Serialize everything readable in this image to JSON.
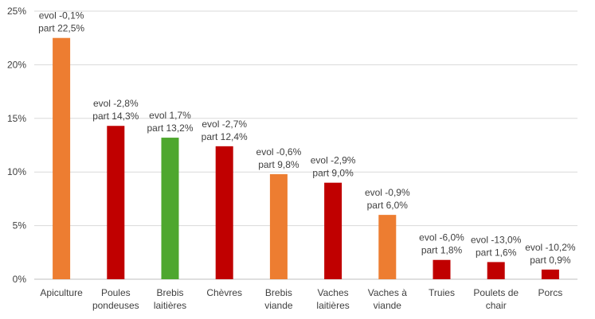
{
  "chart_data": {
    "type": "bar",
    "title": "",
    "xlabel": "",
    "ylabel": "",
    "ylim": [
      0,
      25
    ],
    "y_ticks": [
      "0%",
      "5%",
      "10%",
      "15%",
      "20%",
      "25%"
    ],
    "y_tick_values": [
      0,
      5,
      10,
      15,
      20,
      25
    ],
    "grid": true,
    "legend": "none",
    "colors": {
      "orange": "#ED7D31",
      "red": "#C00000",
      "green": "#4EA72E"
    },
    "categories": [
      [
        "Apiculture"
      ],
      [
        "Poules",
        "pondeuses"
      ],
      [
        "Brebis",
        "laitières"
      ],
      [
        "Chèvres"
      ],
      [
        "Brebis",
        "viande"
      ],
      [
        "Vaches",
        "laitières"
      ],
      [
        "Vaches à",
        "viande"
      ],
      [
        "Truies"
      ],
      [
        "Poulets de",
        "chair"
      ],
      [
        "Porcs"
      ]
    ],
    "values": [
      22.5,
      14.3,
      13.2,
      12.4,
      9.8,
      9.0,
      6.0,
      1.8,
      1.6,
      0.9
    ],
    "bar_colors": [
      "#ED7D31",
      "#C00000",
      "#4EA72E",
      "#C00000",
      "#ED7D31",
      "#C00000",
      "#ED7D31",
      "#C00000",
      "#C00000",
      "#C00000"
    ],
    "data_labels": [
      [
        "evol -0,1%",
        "part 22,5%"
      ],
      [
        "evol -2,8%",
        "part 14,3%"
      ],
      [
        "evol 1,7%",
        "part 13,2%"
      ],
      [
        "evol -2,7%",
        "part 12,4%"
      ],
      [
        "evol -0,6%",
        "part 9,8%"
      ],
      [
        "evol -2,9%",
        "part 9,0%"
      ],
      [
        "evol -0,9%",
        "part 6,0%"
      ],
      [
        "evol -6,0%",
        "part 1,8%"
      ],
      [
        "evol -13,0%",
        "part 1,6%"
      ],
      [
        "evol -10,2%",
        "part 0,9%"
      ]
    ]
  }
}
